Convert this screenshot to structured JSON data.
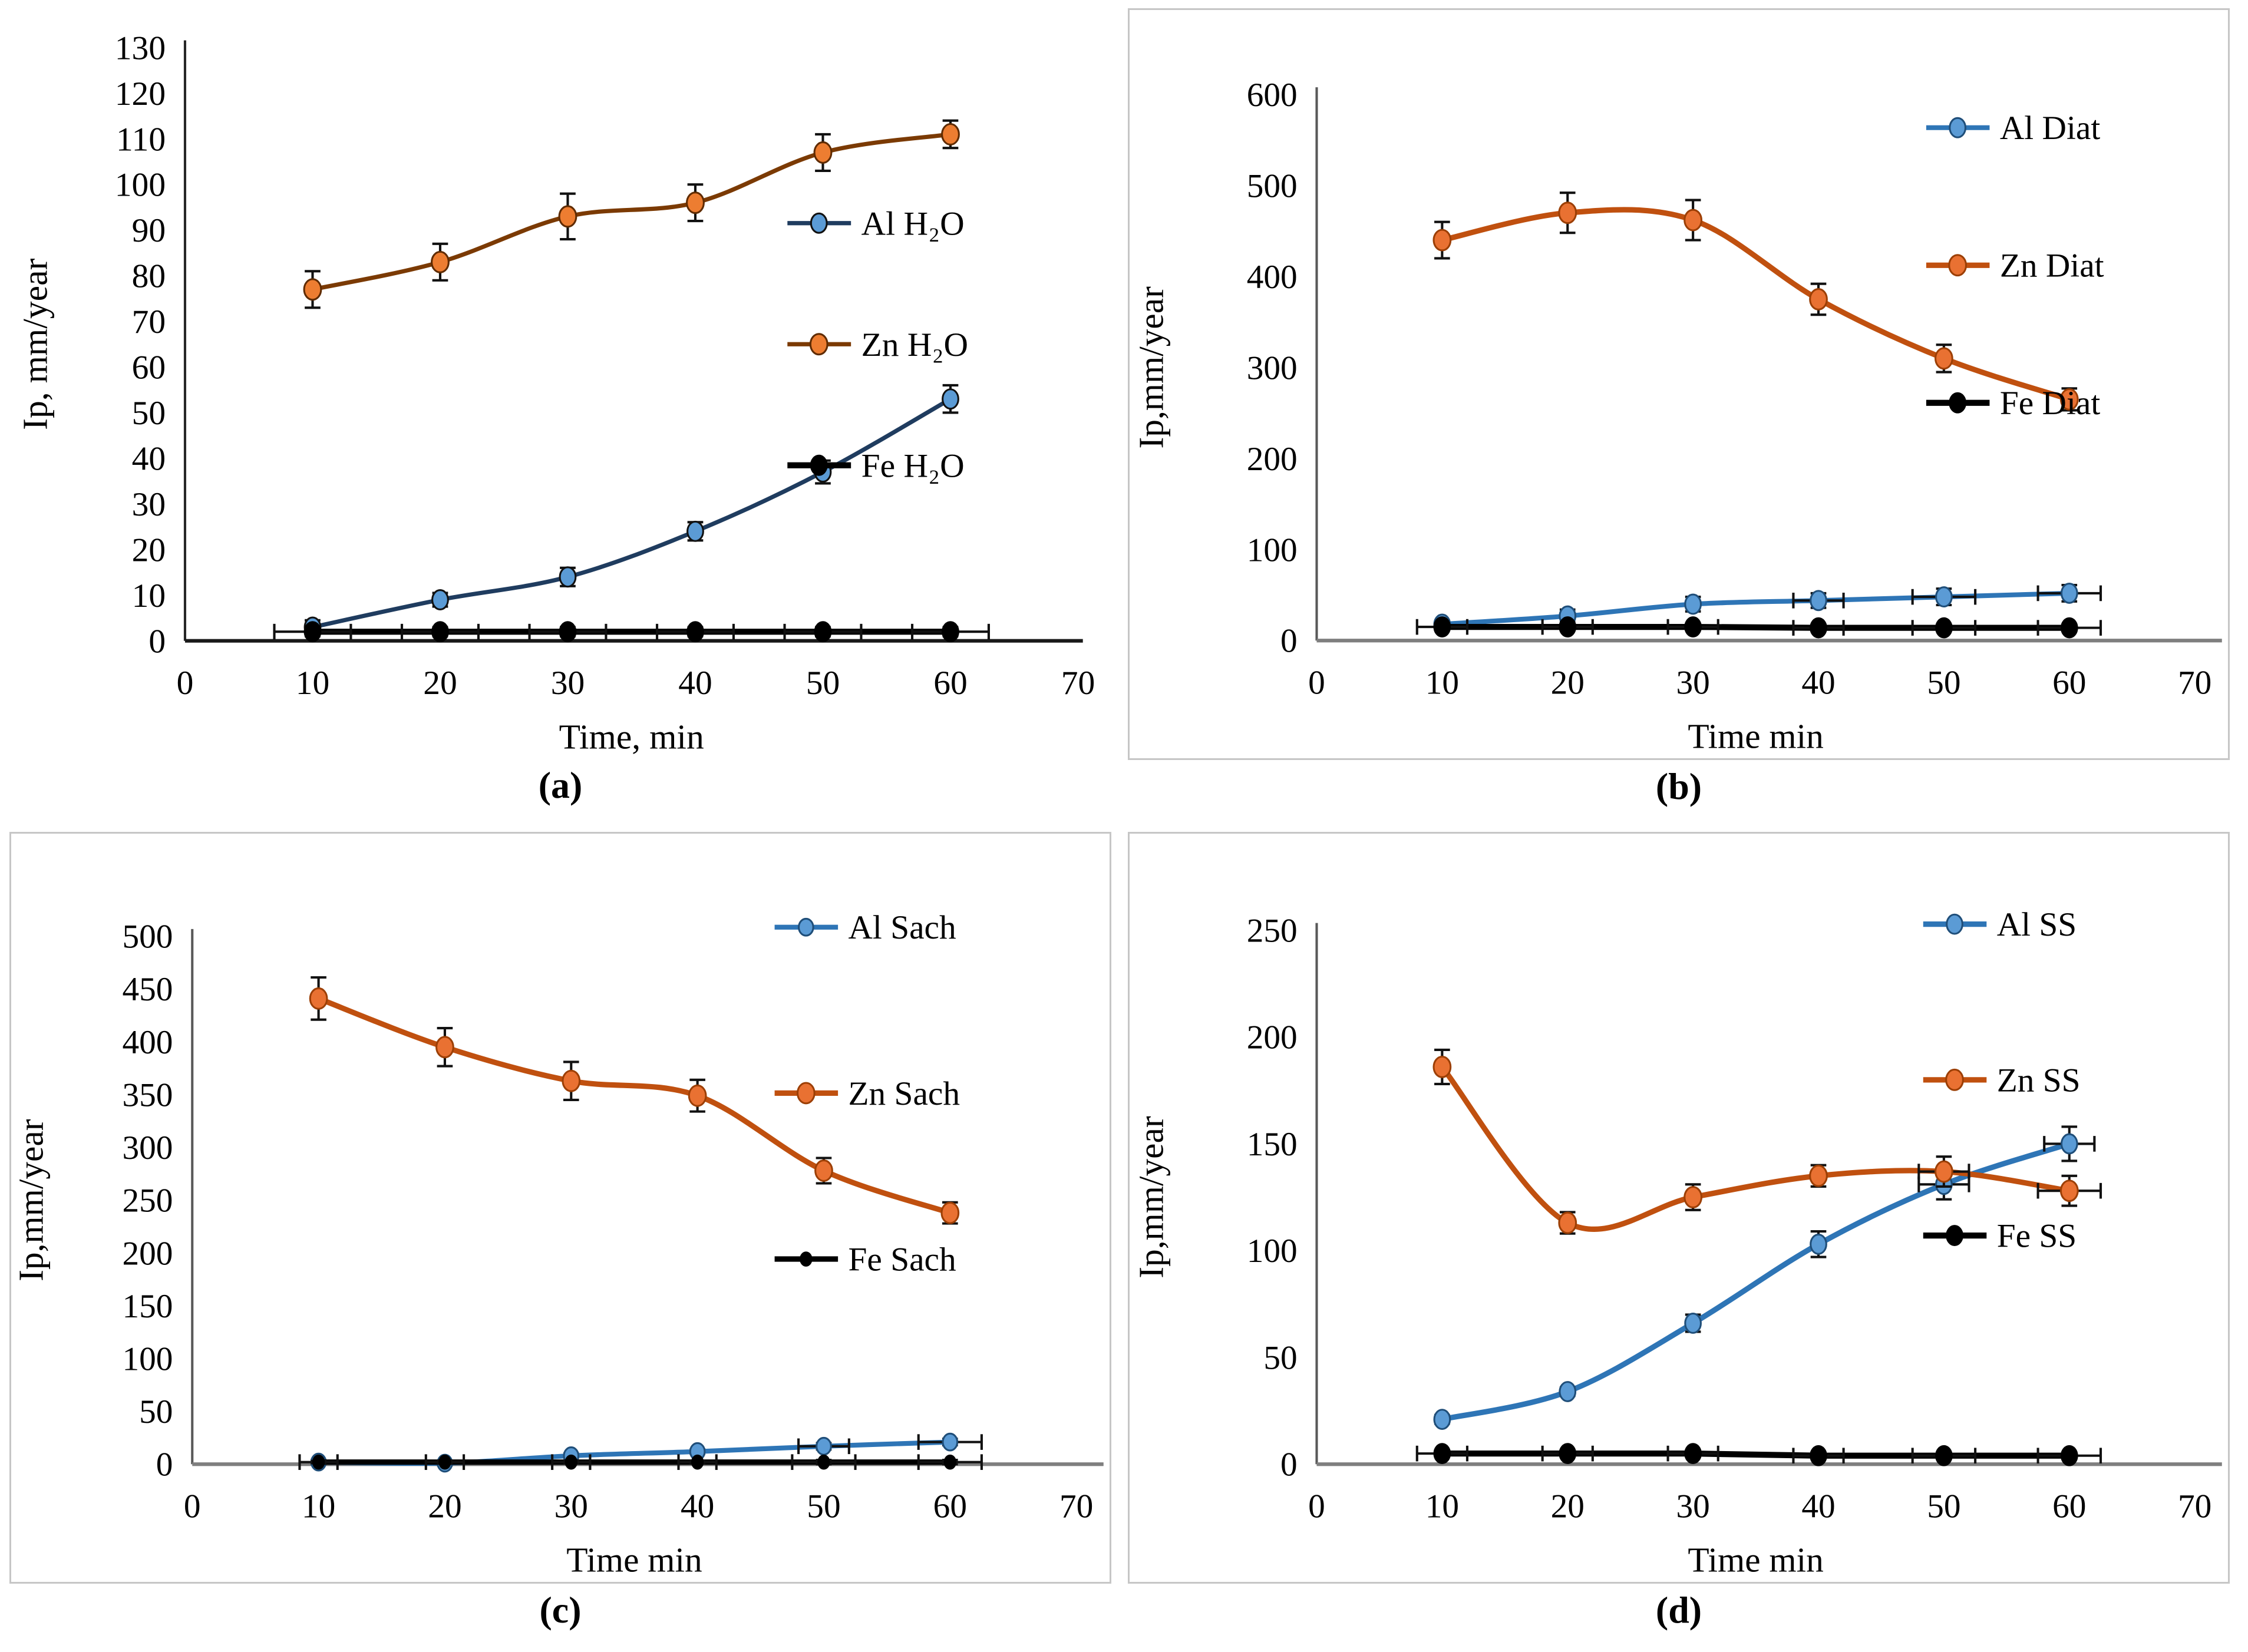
{
  "chart_data": [
    {
      "id": "a",
      "type": "line",
      "caption": "(a)",
      "xlabel": "Time, min",
      "ylabel": "Ip, mm/year",
      "x": [
        10,
        20,
        30,
        40,
        50,
        60
      ],
      "xlim": [
        0,
        70
      ],
      "ylim": [
        0,
        130
      ],
      "xtick_step": 10,
      "ytick_step": 10,
      "grid": false,
      "bordered": false,
      "legend_position": "right-middle",
      "layout": {
        "margin_left": 290,
        "margin_top": 65,
        "ylabel_x": 62,
        "legend_x": 1285,
        "legend_y": 355,
        "legend_spacing": 200,
        "y_axis_color": "#262626",
        "x_axis_color": "#1a1a1a",
        "x_axis_overhang": 8
      },
      "series": [
        {
          "name": "Al H₂O",
          "line_color": "#1F3C5F",
          "line_width": 7,
          "marker_color": "#5B9BD5",
          "marker_stroke": "#111111",
          "marker_r": 13,
          "smooth": true,
          "y": [
            3,
            9,
            14,
            24,
            37,
            53
          ],
          "yerr": [
            1.5,
            1.5,
            2,
            2,
            2.5,
            3
          ],
          "xerr": [
            0,
            0,
            0,
            0,
            0,
            0
          ]
        },
        {
          "name": "Zn H₂O",
          "line_color": "#7B3A03",
          "line_width": 7,
          "marker_color": "#ED7D31",
          "marker_stroke": "#5f2b00",
          "marker_r": 14,
          "smooth": true,
          "y": [
            77,
            83,
            93,
            96,
            107,
            111
          ],
          "yerr": [
            4,
            4,
            5,
            4,
            4,
            3
          ],
          "xerr": [
            0,
            0,
            0,
            0,
            0,
            0
          ]
        },
        {
          "name": "Fe H₂O",
          "line_color": "#000000",
          "line_width": 10,
          "marker_color": "#000000",
          "marker_stroke": "#000000",
          "marker_r": 13,
          "smooth": false,
          "y": [
            2,
            2,
            2,
            2,
            2,
            2
          ],
          "yerr": [
            1,
            1,
            1,
            1,
            1,
            1
          ],
          "xerr": [
            3,
            3,
            3,
            3,
            3,
            3
          ]
        }
      ]
    },
    {
      "id": "b",
      "type": "line",
      "caption": "(b)",
      "xlabel": "Time min",
      "ylabel": "Ip,mm/year",
      "x": [
        10,
        20,
        30,
        40,
        50,
        60
      ],
      "xlim": [
        0,
        70
      ],
      "ylim": [
        0,
        600
      ],
      "xtick_step": 10,
      "ytick_step": 100,
      "grid": false,
      "bordered": true,
      "legend_position": "top-right",
      "layout": {
        "margin_left": 310,
        "margin_top": 140,
        "ylabel_x": 55,
        "legend_x": 1320,
        "legend_y": 195,
        "legend_spacing": 228,
        "y_axis_color": "#595959",
        "x_axis_color": "#7f7f7f",
        "x_axis_overhang": 45
      },
      "series": [
        {
          "name": "Al Diat",
          "line_color": "#2E75B6",
          "line_width": 8,
          "marker_color": "#5B9BD5",
          "marker_stroke": "#1F4E79",
          "marker_r": 13,
          "smooth": true,
          "y": [
            18,
            27,
            40,
            44,
            48,
            52
          ],
          "yerr": [
            4,
            7,
            8,
            8,
            9,
            9
          ],
          "xerr": [
            0,
            0,
            0,
            2,
            2.5,
            2.5
          ]
        },
        {
          "name": "Zn Diat",
          "line_color": "#C0500F",
          "line_width": 9,
          "marker_color": "#E97132",
          "marker_stroke": "#9c3f05",
          "marker_r": 14,
          "smooth": true,
          "y": [
            440,
            470,
            462,
            375,
            310,
            265
          ],
          "yerr": [
            20,
            22,
            22,
            17,
            15,
            12
          ],
          "xerr": [
            0,
            0,
            0,
            0,
            0,
            0
          ]
        },
        {
          "name": "Fe Diat",
          "line_color": "#000000",
          "line_width": 10,
          "marker_color": "#000000",
          "marker_stroke": "#000000",
          "marker_r": 13,
          "smooth": false,
          "y": [
            15,
            15,
            15,
            14,
            14,
            14
          ],
          "yerr": [
            3,
            3,
            3,
            3,
            3,
            3
          ],
          "xerr": [
            2,
            2,
            2,
            2,
            2.5,
            2.5
          ]
        }
      ]
    },
    {
      "id": "c",
      "type": "line",
      "caption": "(c)",
      "xlabel": "Time min",
      "ylabel": "Ip,mm/year",
      "x": [
        10,
        20,
        30,
        40,
        50,
        60
      ],
      "xlim": [
        0,
        70
      ],
      "ylim": [
        0,
        500
      ],
      "xtick_step": 10,
      "ytick_step": 50,
      "grid": false,
      "bordered": true,
      "legend_position": "top-right",
      "layout": {
        "margin_left": 300,
        "margin_top": 170,
        "ylabel_x": 52,
        "legend_x": 1265,
        "legend_y": 155,
        "legend_spacing": 275,
        "y_axis_color": "#595959",
        "x_axis_color": "#7f7f7f",
        "x_axis_overhang": 45
      },
      "series": [
        {
          "name": "Al Sach",
          "line_color": "#2E75B6",
          "line_width": 8,
          "marker_color": "#5B9BD5",
          "marker_stroke": "#1F4E79",
          "marker_r": 12,
          "smooth": true,
          "y": [
            2,
            1,
            8,
            12,
            17,
            21
          ],
          "yerr": [
            2,
            2,
            2,
            2,
            3,
            3
          ],
          "xerr": [
            0,
            0,
            0,
            0,
            2,
            2.5
          ]
        },
        {
          "name": "Zn Sach",
          "line_color": "#C0500F",
          "line_width": 9,
          "marker_color": "#E97132",
          "marker_stroke": "#9c3f05",
          "marker_r": 14,
          "smooth": true,
          "y": [
            441,
            395,
            363,
            349,
            278,
            238
          ],
          "yerr": [
            20,
            18,
            18,
            15,
            12,
            10
          ],
          "xerr": [
            0,
            0,
            0,
            0,
            0,
            0
          ]
        },
        {
          "name": "Fe Sach",
          "line_color": "#000000",
          "line_width": 9,
          "marker_color": "#000000",
          "marker_stroke": "#000000",
          "marker_r": 9,
          "smooth": false,
          "y": [
            2,
            2,
            2,
            2,
            2,
            2
          ],
          "yerr": [
            1,
            1,
            1,
            1,
            2,
            2
          ],
          "xerr": [
            1.5,
            1.5,
            1.5,
            1.5,
            2.5,
            2.5
          ]
        }
      ]
    },
    {
      "id": "d",
      "type": "line",
      "caption": "(d)",
      "xlabel": "Time min",
      "ylabel": "Ip,mm/year",
      "x": [
        10,
        20,
        30,
        40,
        50,
        60
      ],
      "xlim": [
        0,
        70
      ],
      "ylim": [
        0,
        250
      ],
      "xtick_step": 10,
      "ytick_step": 50,
      "grid": false,
      "bordered": true,
      "legend_position": "top-right",
      "layout": {
        "margin_left": 310,
        "margin_top": 160,
        "ylabel_x": 55,
        "legend_x": 1315,
        "legend_y": 150,
        "legend_spacing": 258,
        "y_axis_color": "#595959",
        "x_axis_color": "#7f7f7f",
        "x_axis_overhang": 45
      },
      "series": [
        {
          "name": "Al SS",
          "line_color": "#2E75B6",
          "line_width": 9,
          "marker_color": "#5B9BD5",
          "marker_stroke": "#1F4E79",
          "marker_r": 13,
          "smooth": true,
          "y": [
            21,
            34,
            66,
            103,
            131,
            150
          ],
          "yerr": [
            2,
            2,
            4,
            6,
            7,
            8
          ],
          "xerr": [
            0,
            0,
            0,
            0,
            2,
            2
          ]
        },
        {
          "name": "Zn SS",
          "line_color": "#C0500F",
          "line_width": 9,
          "marker_color": "#E97132",
          "marker_stroke": "#9c3f05",
          "marker_r": 14,
          "smooth": true,
          "y": [
            186,
            113,
            125,
            135,
            137,
            128
          ],
          "yerr": [
            8,
            5,
            6,
            5,
            7,
            7
          ],
          "xerr": [
            0,
            0,
            0,
            0,
            2,
            2.5
          ]
        },
        {
          "name": "Fe SS",
          "line_color": "#000000",
          "line_width": 10,
          "marker_color": "#000000",
          "marker_stroke": "#000000",
          "marker_r": 13,
          "smooth": false,
          "y": [
            5,
            5,
            5,
            4,
            4,
            4
          ],
          "yerr": [
            1,
            1,
            1,
            1,
            1,
            1
          ],
          "xerr": [
            2,
            2,
            2,
            2,
            2.5,
            2.5
          ]
        }
      ]
    }
  ]
}
